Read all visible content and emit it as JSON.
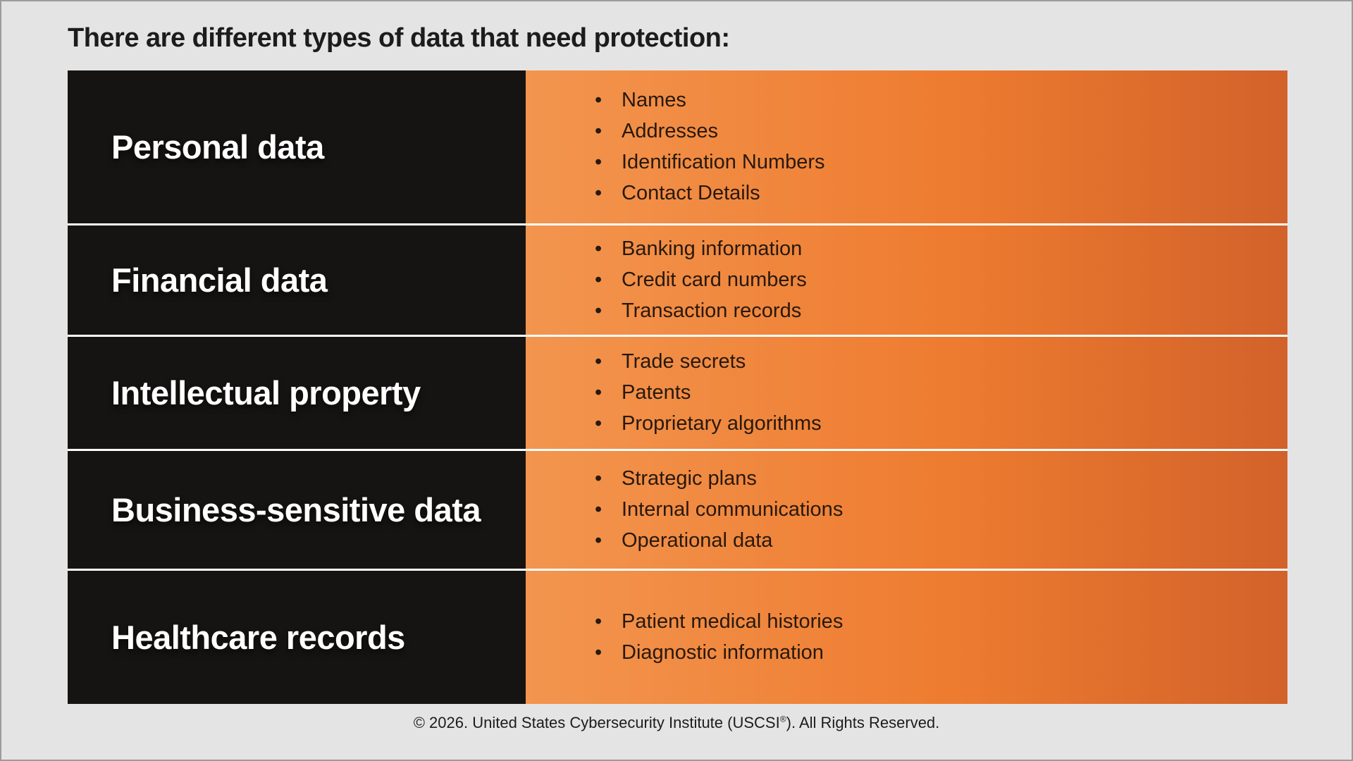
{
  "title": "There are different types of data that need protection:",
  "table": {
    "rows": [
      {
        "category": "Personal data",
        "items": [
          "Names",
          "Addresses",
          "Identification Numbers",
          "Contact Details"
        ]
      },
      {
        "category": "Financial data",
        "items": [
          "Banking information",
          "Credit card numbers",
          "Transaction records"
        ]
      },
      {
        "category": "Intellectual property",
        "items": [
          "Trade secrets",
          "Patents",
          "Proprietary algorithms"
        ]
      },
      {
        "category": "Business-sensitive data",
        "items": [
          "Strategic plans",
          "Internal communications",
          "Operational data"
        ]
      },
      {
        "category": "Healthcare records",
        "items": [
          "Patient medical histories",
          "Diagnostic information"
        ]
      }
    ]
  },
  "footer": {
    "prefix": "© 2026. United States Cybersecurity Institute (USCSI",
    "reg": "®",
    "suffix": "). All Rights Reserved."
  },
  "icons": {
    "bullet": "•"
  },
  "colors": {
    "background": "#e4e4e4",
    "border": "#9c9c9c",
    "title_text": "#1c1c1c",
    "category_bg": "#161413",
    "category_text": "#ffffff",
    "orange_left": "#f3954f",
    "orange_mid": "#ee7c30",
    "orange_right": "#d2622a",
    "bullet_text": "#27190e",
    "separator": "#ffffff"
  }
}
